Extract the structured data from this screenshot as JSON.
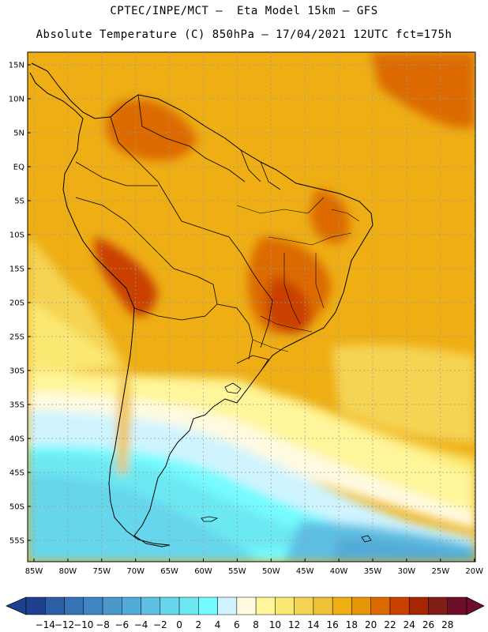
{
  "title": {
    "line1": "CPTEC/INPE/MCT –  Eta Model 15km – GFS",
    "line2": "Absolute Temperature (C) 850hPa – 17/04/2021 12UTC fct=175h"
  },
  "map": {
    "lat_labels": [
      "15N",
      "10N",
      "5N",
      "EQ",
      "5S",
      "10S",
      "15S",
      "20S",
      "25S",
      "30S",
      "35S",
      "40S",
      "45S",
      "50S",
      "55S"
    ],
    "lon_labels": [
      "85W",
      "80W",
      "75W",
      "70W",
      "65W",
      "60W",
      "55W",
      "50W",
      "45W",
      "40W",
      "35W",
      "30W",
      "25W",
      "20W"
    ]
  },
  "colorbar": {
    "labels": [
      "-14",
      "-12",
      "-10",
      "-8",
      "-6",
      "-4",
      "-2",
      "0",
      "2",
      "4",
      "6",
      "8",
      "10",
      "12",
      "14",
      "16",
      "18",
      "20",
      "22",
      "24",
      "26",
      "28"
    ],
    "colors": [
      "#1f3f8f",
      "#2a5fa6",
      "#3573b5",
      "#3f86c2",
      "#4a98cc",
      "#52abd8",
      "#5dbfe2",
      "#66d6ec",
      "#6ce8f2",
      "#74fbff",
      "#cff4ff",
      "#fffae0",
      "#fff59a",
      "#fbe872",
      "#f5d352",
      "#f0c038",
      "#eeae14",
      "#e79606",
      "#dc6a00",
      "#c94000",
      "#a52600",
      "#801d16",
      "#6d0f2a"
    ]
  }
}
